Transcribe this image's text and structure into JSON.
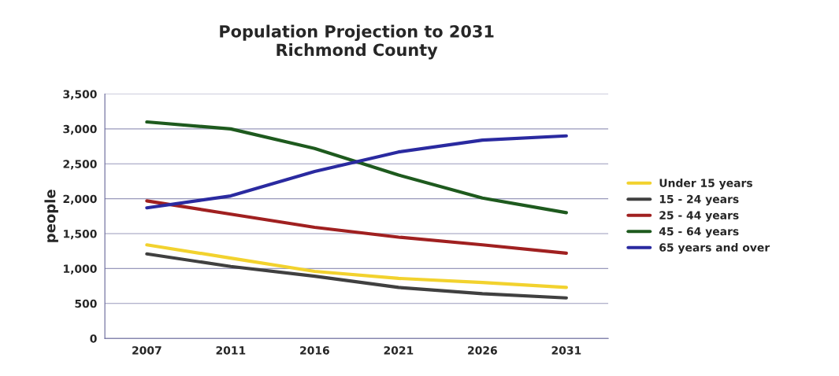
{
  "chart_data": {
    "type": "line",
    "title": "Population Projection to 2031\nRichmond County",
    "ylabel": "people",
    "categories": [
      "2007",
      "2011",
      "2016",
      "2021",
      "2026",
      "2031"
    ],
    "series": [
      {
        "name": "Under 15 years",
        "color": "#f2d22e",
        "values": [
          1340,
          1150,
          960,
          860,
          800,
          730
        ]
      },
      {
        "name": "15 - 24 years",
        "color": "#404040",
        "values": [
          1210,
          1030,
          890,
          730,
          640,
          580
        ]
      },
      {
        "name": "25 - 44 years",
        "color": "#a02020",
        "values": [
          1970,
          1780,
          1590,
          1450,
          1340,
          1220
        ]
      },
      {
        "name": "45 - 64 years",
        "color": "#1e5a1e",
        "values": [
          3100,
          3000,
          2720,
          2340,
          2010,
          1800
        ]
      },
      {
        "name": "65 years and over",
        "color": "#2a2aa0",
        "values": [
          1870,
          2040,
          2390,
          2670,
          2840,
          2900
        ]
      }
    ],
    "ylim": [
      0,
      3500
    ],
    "yticks": [
      0,
      {
        "value": 500,
        "label": "500"
      },
      {
        "value": 1000,
        "label": "1,000"
      },
      {
        "value": 1500,
        "label": "1,500"
      },
      {
        "value": 2000,
        "label": "2,000"
      },
      {
        "value": 2500,
        "label": "2,500"
      },
      {
        "value": 3000,
        "label": "3,000"
      },
      {
        "value": 3500,
        "label": "3,500"
      }
    ],
    "grid": "y",
    "legend": "right",
    "marker": "none",
    "line_style": "solid"
  }
}
